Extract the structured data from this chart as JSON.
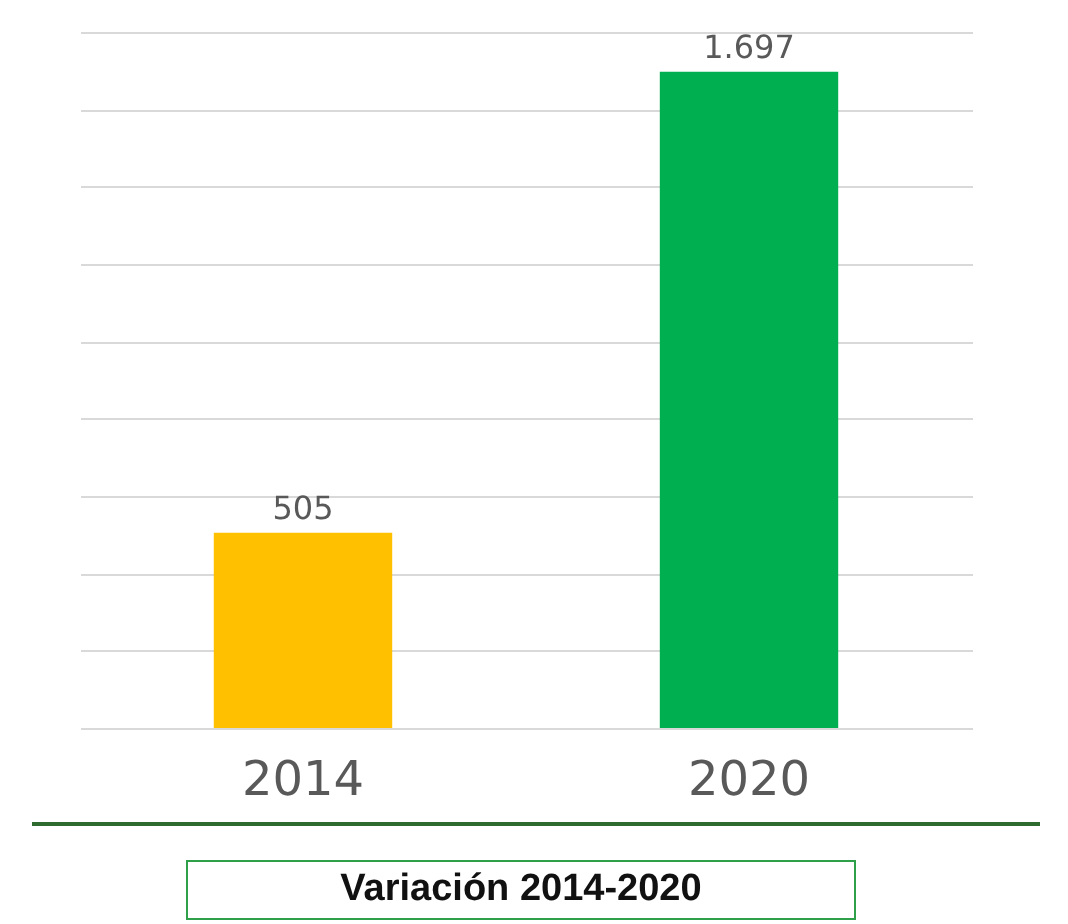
{
  "chart_data": {
    "type": "bar",
    "title": "Variación 2014-2020",
    "categories": [
      "2014",
      "2020"
    ],
    "values": [
      505,
      1697
    ],
    "colors": [
      "#ffc000",
      "#00b050"
    ],
    "value_labels": [
      "505",
      "1.697"
    ],
    "grid": "y",
    "tick_labels": "x"
  }
}
